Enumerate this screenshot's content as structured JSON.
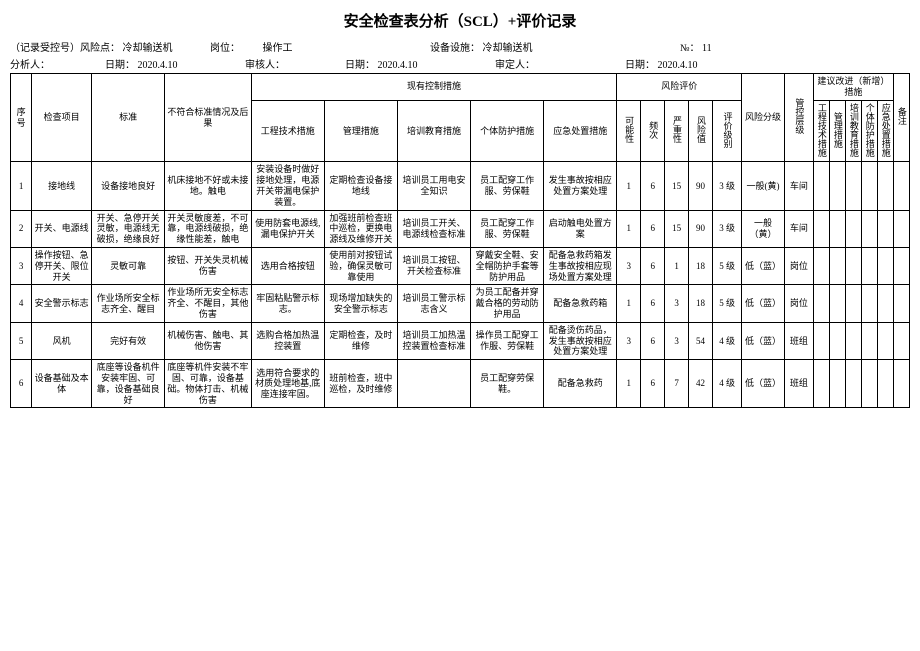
{
  "title": "安全检查表分析（SCL）+评价记录",
  "header": {
    "line1": {
      "riskpoint_label": "（记录受控号）风险点：",
      "riskpoint_value": "冷却输送机",
      "post_label": "岗位：",
      "post_value": "操作工",
      "equip_label": "设备设施：",
      "equip_value": "冷却输送机",
      "no_label": "№：",
      "no_value": "11"
    },
    "line2": {
      "analyst_label": "分析人：",
      "date1_label": "日期：",
      "date1_value": "2020.4.10",
      "auditor_label": "审核人：",
      "date2_label": "日期：",
      "date2_value": "2020.4.10",
      "approver_label": "审定人：",
      "date3_label": "日期：",
      "date3_value": "2020.4.10"
    }
  },
  "columns": {
    "seq": "序号",
    "item": "检查项目",
    "std": "标准",
    "noncon": "不符合标准情况及后果",
    "measures_group": "现有控制措施",
    "eng": "工程技术措施",
    "mgmt": "管理措施",
    "train": "培训教育措施",
    "ppe": "个体防护措施",
    "emerg": "应急处置措施",
    "risk_group": "风险评价",
    "prob": "可能性",
    "freq": "频次",
    "sev": "严重性",
    "riskval": "风险值",
    "level": "评价级别",
    "riskclass": "风险分级",
    "ctrllvl": "管控层级",
    "suggest_group": "建议改进（新增）措施",
    "sug1": "工程技术措施",
    "sug2": "管理措施",
    "sug3": "培训教育措施",
    "sug4": "个体防护措施",
    "sug5": "应急处置措施",
    "note": "备注"
  },
  "rows": [
    {
      "seq": "1",
      "item": "接地线",
      "std": "设备接地良好",
      "noncon": "机床接地不好或未接地。触电",
      "eng": "安装设备时做好接地处理，电源开关带漏电保护装置。",
      "mgmt": "定期检查设备接地线",
      "train": "培训员工用电安全知识",
      "ppe": "员工配穿工作服、劳保鞋",
      "emerg": "发生事故按相应处置方案处理",
      "prob": "1",
      "freq": "6",
      "sev": "15",
      "riskval": "90",
      "level": "3 级",
      "riskclass": "一般(黄)",
      "ctrllvl": "车间"
    },
    {
      "seq": "2",
      "item": "开关、电源线",
      "std": "开关、急停开关灵敏，电源线无破损，绝缘良好",
      "noncon": "开关灵敏度差，不可靠，电源线破损，绝缘性能差，触电",
      "eng": "使用防套电源线,漏电保护开关",
      "mgmt": "加强班前检查班中巡检，更换电源线及维修开关",
      "train": "培训员工开关、电源线检查标准",
      "ppe": "员工配穿工作服、劳保鞋",
      "emerg": "启动触电处置方案",
      "prob": "1",
      "freq": "6",
      "sev": "15",
      "riskval": "90",
      "level": "3 级",
      "riskclass": "一般（黄）",
      "ctrllvl": "车间"
    },
    {
      "seq": "3",
      "item": "操作按钮、急停开关、限位开关",
      "std": "灵敏可靠",
      "noncon": "按钮、开关失灵机械伤害",
      "eng": "选用合格按钮",
      "mgmt": "使用前对按钮试验，确保灵敏可靠使用",
      "train": "培训员工按钮、开关检查标准",
      "ppe": "穿戴安全鞋、安全帽防护手套等防护用品",
      "emerg": "配备急救药箱发生事故按相应现场处置方案处理",
      "prob": "3",
      "freq": "6",
      "sev": "1",
      "riskval": "18",
      "level": "5 级",
      "riskclass": "低（蓝）",
      "ctrllvl": "岗位"
    },
    {
      "seq": "4",
      "item": "安全警示标志",
      "std": "作业场所安全标志齐全、醒目",
      "noncon": "作业场所无安全标志齐全、不醒目，其他伤害",
      "eng": "牢固粘贴警示标志。",
      "mgmt": "现场增加缺失的安全警示标志",
      "train": "培训员工警示标志含义",
      "ppe": "为员工配备并穿戴合格的劳动防护用品",
      "emerg": "配备急救药箱",
      "prob": "1",
      "freq": "6",
      "sev": "3",
      "riskval": "18",
      "level": "5 级",
      "riskclass": "低（蓝）",
      "ctrllvl": "岗位"
    },
    {
      "seq": "5",
      "item": "风机",
      "std": "完好有效",
      "noncon": "机械伤害、触电、其他伤害",
      "eng": "选购合格加热温控装置",
      "mgmt": "定期检查，及时维修",
      "train": "培训员工加热温控装置检查标准",
      "ppe": "操作员工配穿工作服、劳保鞋",
      "emerg": "配备烫伤药品，发生事故按相应处置方案处理",
      "prob": "3",
      "freq": "6",
      "sev": "3",
      "riskval": "54",
      "level": "4 级",
      "riskclass": "低（蓝）",
      "ctrllvl": "班组"
    },
    {
      "seq": "6",
      "item": "设备基础及本体",
      "std": "底座等设备机件安装牢固、可靠，设备基础良好",
      "noncon": "底座等机件安装不牢固、可靠，设备基础。物体打击、机械伤害",
      "eng": "选用符合要求的材质处理地基,底座连接牢固。",
      "mgmt": "班前检查，班中巡检，及时维修",
      "train": "",
      "ppe": "员工配穿劳保鞋。",
      "emerg": "配备急救药",
      "prob": "1",
      "freq": "6",
      "sev": "7",
      "riskval": "42",
      "level": "4 级",
      "riskclass": "低（蓝）",
      "ctrllvl": "班组"
    }
  ]
}
